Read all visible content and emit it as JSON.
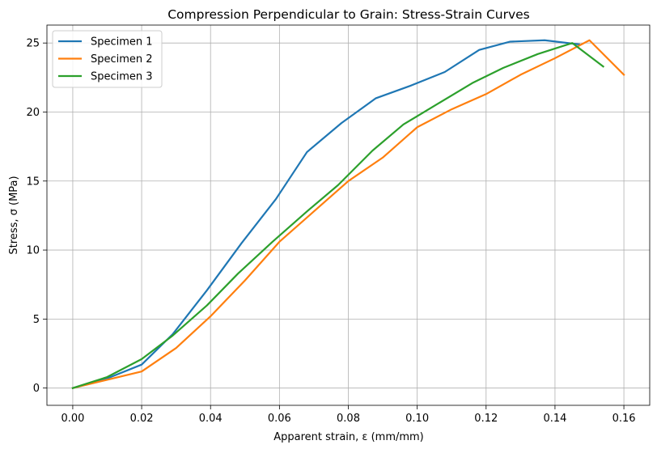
{
  "chart_data": {
    "type": "line",
    "title": "Compression Perpendicular to Grain: Stress-Strain Curves",
    "xlabel": "Apparent strain, ε (mm/mm)",
    "ylabel": "Stress, σ (MPa)",
    "xlim": [
      -0.0075,
      0.1675
    ],
    "ylim": [
      -1.25,
      26.3
    ],
    "xticks": [
      0.0,
      0.02,
      0.04,
      0.06,
      0.08,
      0.1,
      0.12,
      0.14,
      0.16
    ],
    "xtick_labels": [
      "0.00",
      "0.02",
      "0.04",
      "0.06",
      "0.08",
      "0.10",
      "0.12",
      "0.14",
      "0.16"
    ],
    "yticks": [
      0,
      5,
      10,
      15,
      20,
      25
    ],
    "ytick_labels": [
      "0",
      "5",
      "10",
      "15",
      "20",
      "25"
    ],
    "grid": true,
    "legend_position": "top-left",
    "series": [
      {
        "name": "Specimen 1",
        "color": "#1f77b4",
        "x": [
          0.0,
          0.01,
          0.02,
          0.029,
          0.039,
          0.049,
          0.059,
          0.068,
          0.078,
          0.088,
          0.098,
          0.108,
          0.118,
          0.127,
          0.137,
          0.147
        ],
        "y": [
          0.0,
          0.7,
          1.7,
          3.9,
          7.1,
          10.5,
          13.7,
          17.1,
          19.2,
          21.0,
          21.9,
          22.9,
          24.5,
          25.1,
          25.2,
          24.9
        ]
      },
      {
        "name": "Specimen 2",
        "color": "#ff7f0e",
        "x": [
          0.0,
          0.01,
          0.02,
          0.03,
          0.04,
          0.05,
          0.06,
          0.07,
          0.08,
          0.09,
          0.1,
          0.11,
          0.12,
          0.13,
          0.14,
          0.15,
          0.16
        ],
        "y": [
          0.0,
          0.6,
          1.2,
          2.9,
          5.2,
          7.8,
          10.6,
          12.8,
          15.0,
          16.7,
          18.9,
          20.2,
          21.3,
          22.7,
          23.9,
          25.2,
          22.7
        ]
      },
      {
        "name": "Specimen 3",
        "color": "#2ca02c",
        "x": [
          0.0,
          0.01,
          0.02,
          0.029,
          0.039,
          0.048,
          0.058,
          0.068,
          0.077,
          0.087,
          0.096,
          0.106,
          0.116,
          0.125,
          0.135,
          0.145,
          0.154
        ],
        "y": [
          0.0,
          0.8,
          2.1,
          3.8,
          6.0,
          8.3,
          10.6,
          12.8,
          14.7,
          17.2,
          19.1,
          20.6,
          22.1,
          23.2,
          24.2,
          25.0,
          23.3
        ]
      }
    ]
  }
}
